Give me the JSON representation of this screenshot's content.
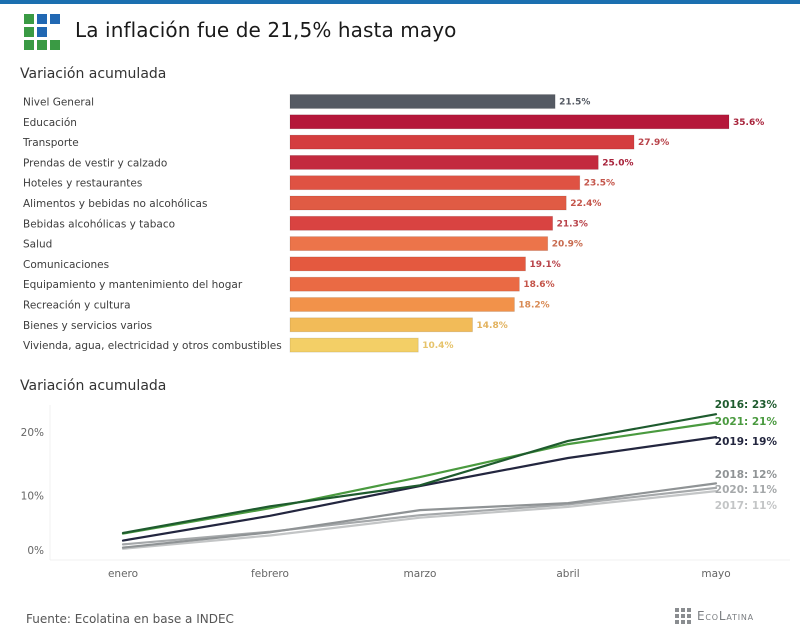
{
  "header": {
    "title": "La inflación fue de 21,5% hasta mayo",
    "accent_color": "#1b6fb0",
    "logo_colors": {
      "green": "#3a9a44",
      "blue": "#2168b3"
    }
  },
  "footer": {
    "source": "Fuente: Ecolatina en base a INDEC",
    "brand": "EcoLatina"
  },
  "chart_data": [
    {
      "type": "bar",
      "orientation": "horizontal",
      "title": "Variación acumulada",
      "unit": "%",
      "categories": [
        "Nivel General",
        "Educación",
        "Transporte",
        "Prendas de vestir y calzado",
        "Hoteles y restaurantes",
        "Alimentos y bebidas no alcohólicas",
        "Bebidas alcohólicas y tabaco",
        "Salud",
        "Comunicaciones",
        "Equipamiento y mantenimiento del hogar",
        "Recreación y cultura",
        "Bienes y servicios varios",
        "Vivienda, agua, electricidad y otros combustibles"
      ],
      "values": [
        21.5,
        35.6,
        27.9,
        25.0,
        23.5,
        22.4,
        21.3,
        20.9,
        19.1,
        18.6,
        18.2,
        14.8,
        10.4
      ],
      "value_labels": [
        "21.5%",
        "35.6%",
        "27.9%",
        "25.0%",
        "23.5%",
        "22.4%",
        "21.3%",
        "20.9%",
        "19.1%",
        "18.6%",
        "18.2%",
        "14.8%",
        "10.4%"
      ],
      "colors": [
        "#555a63",
        "#b5173a",
        "#d43d3f",
        "#c32a3e",
        "#df5243",
        "#e05b44",
        "#d94341",
        "#ec744a",
        "#e4593f",
        "#ea6a44",
        "#f2924a",
        "#f2bb58",
        "#f3cf66"
      ],
      "label_colors": [
        "#555a63",
        "#a8233b",
        "#b8434a",
        "#a8233b",
        "#c4554a",
        "#c4554a",
        "#b8434a",
        "#c86a4e",
        "#b8434a",
        "#c4554a",
        "#d88a54",
        "#e2b25e",
        "#e6c36a"
      ],
      "xlim": [
        0,
        35.6
      ]
    },
    {
      "type": "line",
      "title": "Variación acumulada",
      "x": [
        "enero",
        "febrero",
        "marzo",
        "abril",
        "mayo"
      ],
      "yticks": [
        "0%",
        "10%",
        "20%"
      ],
      "ytick_values": [
        0,
        10,
        20
      ],
      "ylim": [
        0,
        24
      ],
      "grid": false,
      "series": [
        {
          "name": "2016",
          "label": "2016: 23%",
          "color": "#1e5b2e",
          "values": [
            4.1,
            8.3,
            11.6,
            18.6,
            22.8
          ]
        },
        {
          "name": "2021",
          "label": "2021: 21%",
          "color": "#4a9a3f",
          "values": [
            4.0,
            8.0,
            12.9,
            18.1,
            21.5
          ]
        },
        {
          "name": "2019",
          "label": "2019: 19%",
          "color": "#23263f",
          "values": [
            2.9,
            6.8,
            11.5,
            15.9,
            19.2
          ]
        },
        {
          "name": "2018",
          "label": "2018: 12%",
          "color": "#8f9395",
          "values": [
            1.8,
            4.2,
            7.7,
            8.8,
            11.9
          ]
        },
        {
          "name": "2020",
          "label": "2020: 11%",
          "color": "#a5a8aa",
          "values": [
            2.3,
            4.3,
            6.9,
            8.6,
            11.2
          ]
        },
        {
          "name": "2017",
          "label": "2017: 11%",
          "color": "#c3c5c6",
          "values": [
            1.6,
            3.7,
            6.5,
            8.2,
            10.7
          ]
        }
      ]
    }
  ]
}
